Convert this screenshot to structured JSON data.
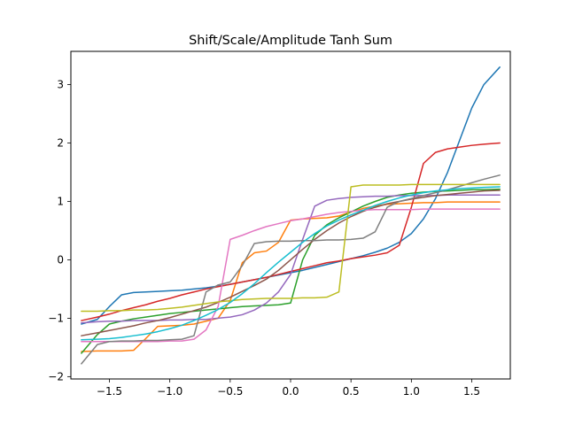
{
  "chart_data": {
    "type": "line",
    "title": "Shift/Scale/Amplitude Tanh Sum",
    "xlabel": "",
    "ylabel": "",
    "xlim": [
      -1.819,
      1.819
    ],
    "ylim": [
      -2.04,
      3.57
    ],
    "xticks": [
      -1.5,
      -1.0,
      -0.5,
      0.0,
      0.5,
      1.0,
      1.5
    ],
    "xtick_labels": [
      "−1.5",
      "−1.0",
      "−0.5",
      "0.0",
      "0.5",
      "1.0",
      "1.5"
    ],
    "yticks": [
      -2,
      -1,
      0,
      1,
      2,
      3
    ],
    "ytick_labels": [
      "−2",
      "−1",
      "0",
      "1",
      "2",
      "3"
    ],
    "grid": false,
    "legend": "none",
    "x": [
      -1.732,
      -1.6,
      -1.5,
      -1.4,
      -1.3,
      -1.2,
      -1.1,
      -1.0,
      -0.9,
      -0.8,
      -0.7,
      -0.6,
      -0.5,
      -0.4,
      -0.3,
      -0.2,
      -0.1,
      0.0,
      0.1,
      0.2,
      0.3,
      0.4,
      0.5,
      0.6,
      0.7,
      0.8,
      0.9,
      1.0,
      1.1,
      1.2,
      1.3,
      1.4,
      1.5,
      1.6,
      1.732
    ],
    "series": [
      {
        "color": "#1f77b4",
        "values": [
          -1.1,
          -1.02,
          -0.8,
          -0.6,
          -0.56,
          -0.55,
          -0.54,
          -0.53,
          -0.52,
          -0.5,
          -0.48,
          -0.45,
          -0.42,
          -0.38,
          -0.34,
          -0.3,
          -0.26,
          -0.22,
          -0.18,
          -0.13,
          -0.08,
          -0.03,
          0.02,
          0.07,
          0.13,
          0.2,
          0.3,
          0.45,
          0.7,
          1.05,
          1.5,
          2.05,
          2.6,
          3.0,
          3.3
        ]
      },
      {
        "color": "#ff7f0e",
        "values": [
          -1.57,
          -1.56,
          -1.56,
          -1.56,
          -1.55,
          -1.35,
          -1.14,
          -1.13,
          -1.12,
          -1.1,
          -1.05,
          -1.0,
          -0.7,
          -0.05,
          0.12,
          0.15,
          0.3,
          0.68,
          0.7,
          0.71,
          0.72,
          0.75,
          0.82,
          0.88,
          0.92,
          0.95,
          0.96,
          0.97,
          0.98,
          0.98,
          0.99,
          0.99,
          0.99,
          0.99,
          0.99
        ]
      },
      {
        "color": "#2ca02c",
        "values": [
          -1.6,
          -1.28,
          -1.1,
          -1.05,
          -1.01,
          -0.98,
          -0.95,
          -0.92,
          -0.9,
          -0.88,
          -0.86,
          -0.84,
          -0.82,
          -0.8,
          -0.79,
          -0.78,
          -0.77,
          -0.74,
          0.0,
          0.42,
          0.6,
          0.72,
          0.82,
          0.92,
          1.0,
          1.07,
          1.11,
          1.14,
          1.16,
          1.17,
          1.18,
          1.19,
          1.2,
          1.2,
          1.21
        ]
      },
      {
        "color": "#d62728",
        "values": [
          -1.04,
          -0.98,
          -0.93,
          -0.87,
          -0.82,
          -0.77,
          -0.71,
          -0.66,
          -0.6,
          -0.55,
          -0.5,
          -0.46,
          -0.42,
          -0.38,
          -0.34,
          -0.3,
          -0.25,
          -0.2,
          -0.15,
          -0.1,
          -0.05,
          -0.02,
          0.02,
          0.05,
          0.08,
          0.12,
          0.25,
          0.9,
          1.65,
          1.84,
          1.9,
          1.93,
          1.96,
          1.98,
          2.0
        ]
      },
      {
        "color": "#9467bd",
        "values": [
          -1.08,
          -1.06,
          -1.05,
          -1.05,
          -1.04,
          -1.04,
          -1.04,
          -1.03,
          -1.03,
          -1.02,
          -1.02,
          -1.0,
          -0.98,
          -0.94,
          -0.86,
          -0.74,
          -0.55,
          -0.25,
          0.35,
          0.92,
          1.02,
          1.05,
          1.07,
          1.08,
          1.09,
          1.09,
          1.1,
          1.1,
          1.1,
          1.1,
          1.11,
          1.11,
          1.11,
          1.11,
          1.11
        ]
      },
      {
        "color": "#8c564b",
        "values": [
          -1.3,
          -1.25,
          -1.21,
          -1.17,
          -1.13,
          -1.08,
          -1.04,
          -0.99,
          -0.93,
          -0.87,
          -0.81,
          -0.73,
          -0.64,
          -0.54,
          -0.44,
          -0.33,
          -0.18,
          0.0,
          0.18,
          0.35,
          0.5,
          0.63,
          0.74,
          0.83,
          0.9,
          0.96,
          1.0,
          1.04,
          1.07,
          1.1,
          1.12,
          1.14,
          1.16,
          1.18,
          1.19
        ]
      },
      {
        "color": "#e377c2",
        "values": [
          -1.4,
          -1.4,
          -1.4,
          -1.4,
          -1.4,
          -1.4,
          -1.4,
          -1.39,
          -1.39,
          -1.36,
          -1.2,
          -0.8,
          0.35,
          0.42,
          0.5,
          0.57,
          0.62,
          0.67,
          0.7,
          0.74,
          0.78,
          0.81,
          0.83,
          0.85,
          0.86,
          0.86,
          0.86,
          0.86,
          0.87,
          0.87,
          0.87,
          0.87,
          0.87,
          0.87,
          0.87
        ]
      },
      {
        "color": "#7f7f7f",
        "values": [
          -1.78,
          -1.45,
          -1.4,
          -1.39,
          -1.39,
          -1.38,
          -1.38,
          -1.37,
          -1.36,
          -1.3,
          -0.55,
          -0.43,
          -0.38,
          -0.1,
          0.28,
          0.31,
          0.32,
          0.32,
          0.33,
          0.33,
          0.34,
          0.34,
          0.35,
          0.37,
          0.48,
          0.9,
          1.0,
          1.05,
          1.1,
          1.15,
          1.2,
          1.26,
          1.32,
          1.38,
          1.45
        ]
      },
      {
        "color": "#bcbd22",
        "values": [
          -0.88,
          -0.88,
          -0.87,
          -0.87,
          -0.86,
          -0.86,
          -0.85,
          -0.83,
          -0.81,
          -0.78,
          -0.75,
          -0.72,
          -0.7,
          -0.68,
          -0.67,
          -0.66,
          -0.66,
          -0.66,
          -0.65,
          -0.65,
          -0.64,
          -0.55,
          1.25,
          1.28,
          1.28,
          1.28,
          1.28,
          1.29,
          1.29,
          1.29,
          1.29,
          1.29,
          1.29,
          1.29,
          1.29
        ]
      },
      {
        "color": "#17becf",
        "values": [
          -1.37,
          -1.36,
          -1.35,
          -1.33,
          -1.3,
          -1.27,
          -1.23,
          -1.18,
          -1.12,
          -1.04,
          -0.95,
          -0.85,
          -0.73,
          -0.58,
          -0.41,
          -0.22,
          -0.04,
          0.13,
          0.3,
          0.45,
          0.58,
          0.68,
          0.77,
          0.85,
          0.93,
          1.0,
          1.06,
          1.11,
          1.15,
          1.18,
          1.2,
          1.22,
          1.23,
          1.24,
          1.25
        ]
      }
    ]
  }
}
